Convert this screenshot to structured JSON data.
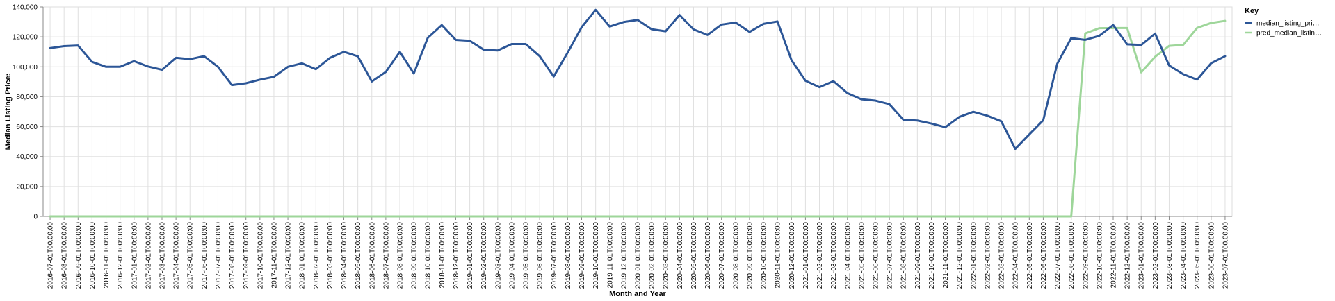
{
  "chart_data": {
    "type": "line",
    "xlabel": "Month and Year",
    "ylabel": "Median Listing Price:",
    "ylim": [
      0,
      140000
    ],
    "yticks": [
      0,
      20000,
      40000,
      60000,
      80000,
      100000,
      120000,
      140000
    ],
    "ytick_labels": [
      "0",
      "20,000",
      "40,000",
      "60,000",
      "80,000",
      "100,000",
      "120,000",
      "140,000"
    ],
    "grid": true,
    "legend": {
      "title": "Key",
      "placement": "right"
    },
    "categories": [
      "2016-07-01T00:00:00",
      "2016-08-01T00:00:00",
      "2016-09-01T00:00:00",
      "2016-10-01T00:00:00",
      "2016-11-01T00:00:00",
      "2016-12-01T00:00:00",
      "2017-01-01T00:00:00",
      "2017-02-01T00:00:00",
      "2017-03-01T00:00:00",
      "2017-04-01T00:00:00",
      "2017-05-01T00:00:00",
      "2017-06-01T00:00:00",
      "2017-07-01T00:00:00",
      "2017-08-01T00:00:00",
      "2017-09-01T00:00:00",
      "2017-10-01T00:00:00",
      "2017-11-01T00:00:00",
      "2017-12-01T00:00:00",
      "2018-01-01T00:00:00",
      "2018-02-01T00:00:00",
      "2018-03-01T00:00:00",
      "2018-04-01T00:00:00",
      "2018-05-01T00:00:00",
      "2018-06-01T00:00:00",
      "2018-07-01T00:00:00",
      "2018-08-01T00:00:00",
      "2018-09-01T00:00:00",
      "2018-10-01T00:00:00",
      "2018-11-01T00:00:00",
      "2018-12-01T00:00:00",
      "2019-01-01T00:00:00",
      "2019-02-01T00:00:00",
      "2019-03-01T00:00:00",
      "2019-04-01T00:00:00",
      "2019-05-01T00:00:00",
      "2019-06-01T00:00:00",
      "2019-07-01T00:00:00",
      "2019-08-01T00:00:00",
      "2019-09-01T00:00:00",
      "2019-10-01T00:00:00",
      "2019-11-01T00:00:00",
      "2019-12-01T00:00:00",
      "2020-01-01T00:00:00",
      "2020-02-01T00:00:00",
      "2020-03-01T00:00:00",
      "2020-04-01T00:00:00",
      "2020-05-01T00:00:00",
      "2020-06-01T00:00:00",
      "2020-07-01T00:00:00",
      "2020-08-01T00:00:00",
      "2020-09-01T00:00:00",
      "2020-10-01T00:00:00",
      "2020-11-01T00:00:00",
      "2020-12-01T00:00:00",
      "2021-01-01T00:00:00",
      "2021-02-01T00:00:00",
      "2021-03-01T00:00:00",
      "2021-04-01T00:00:00",
      "2021-05-01T00:00:00",
      "2021-06-01T00:00:00",
      "2021-07-01T00:00:00",
      "2021-08-01T00:00:00",
      "2021-09-01T00:00:00",
      "2021-10-01T00:00:00",
      "2021-11-01T00:00:00",
      "2021-12-01T00:00:00",
      "2022-01-01T00:00:00",
      "2022-02-01T00:00:00",
      "2022-03-01T00:00:00",
      "2022-04-01T00:00:00",
      "2022-05-01T00:00:00",
      "2022-06-01T00:00:00",
      "2022-07-01T00:00:00",
      "2022-08-01T00:00:00",
      "2022-09-01T00:00:00",
      "2022-10-01T00:00:00",
      "2022-11-01T00:00:00",
      "2022-12-01T00:00:00",
      "2023-01-01T00:00:00",
      "2023-02-01T00:00:00",
      "2023-03-01T00:00:00",
      "2023-04-01T00:00:00",
      "2023-05-01T00:00:00",
      "2023-06-01T00:00:00",
      "2023-07-01T00:00:00"
    ],
    "series": [
      {
        "name": "median_listing_pri…",
        "color": "#2c5697",
        "values": [
          112500,
          113800,
          114200,
          103300,
          100000,
          100000,
          103800,
          100200,
          98000,
          106000,
          105100,
          107100,
          100000,
          87800,
          89000,
          91400,
          93300,
          100000,
          102300,
          98400,
          105900,
          110000,
          107000,
          90200,
          96600,
          110000,
          95500,
          119400,
          127900,
          118000,
          117400,
          111400,
          110900,
          115200,
          115200,
          107100,
          93500,
          109500,
          126500,
          138000,
          126900,
          129900,
          131300,
          125100,
          123700,
          134600,
          125000,
          121300,
          128200,
          129600,
          123300,
          128700,
          130300,
          104500,
          90700,
          86400,
          90400,
          82400,
          78300,
          77400,
          75000,
          64600,
          64100,
          62100,
          59600,
          66500,
          69900,
          67300,
          63600,
          45100,
          54800,
          64300,
          102000,
          119200,
          118000,
          120700,
          127900,
          115000,
          114600,
          122200,
          100900,
          95100,
          91400,
          102400,
          107100
        ]
      },
      {
        "name": "pred_median_listin…",
        "color": "#9ed69a",
        "values": [
          0,
          0,
          0,
          0,
          0,
          0,
          0,
          0,
          0,
          0,
          0,
          0,
          0,
          0,
          0,
          0,
          0,
          0,
          0,
          0,
          0,
          0,
          0,
          0,
          0,
          0,
          0,
          0,
          0,
          0,
          0,
          0,
          0,
          0,
          0,
          0,
          0,
          0,
          0,
          0,
          0,
          0,
          0,
          0,
          0,
          0,
          0,
          0,
          0,
          0,
          0,
          0,
          0,
          0,
          0,
          0,
          0,
          0,
          0,
          0,
          0,
          0,
          0,
          0,
          0,
          0,
          0,
          0,
          0,
          0,
          0,
          0,
          0,
          0,
          122300,
          125800,
          125900,
          125900,
          96300,
          106700,
          114000,
          114600,
          126000,
          129300,
          130700
        ]
      }
    ]
  }
}
